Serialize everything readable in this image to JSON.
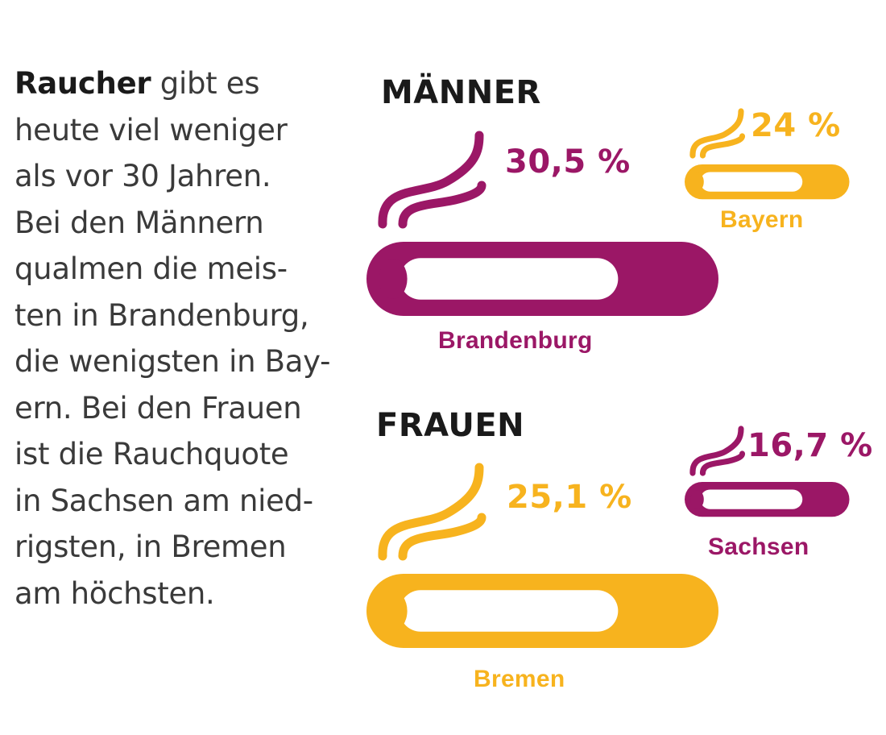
{
  "intro": {
    "lead": "Raucher",
    "first_rest": " gibt es",
    "lines": [
      "heute viel weniger",
      "als vor 30 Jahren.",
      "Bei den Männern",
      "qualmen die meis-",
      "ten in Brandenburg,",
      "die wenigsten in Bay-",
      "ern. Bei den Frauen",
      "ist die Rauchquote",
      "in Sachsen am nied-",
      "rigsten, in Bremen",
      "am höchsten."
    ]
  },
  "colors": {
    "purple": "#9b1766",
    "yellow": "#f7b31e",
    "text_dark": "#1a1a1a"
  },
  "chart_data": [
    {
      "type": "bar",
      "title": "MÄNNER",
      "categories": [
        "Brandenburg",
        "Bayern"
      ],
      "values": [
        30.5,
        24
      ],
      "value_labels": [
        "30,5 %",
        "24 %"
      ],
      "colors": [
        "#9b1766",
        "#f7b31e"
      ],
      "unit": "%"
    },
    {
      "type": "bar",
      "title": "FRAUEN",
      "categories": [
        "Bremen",
        "Sachsen"
      ],
      "values": [
        25.1,
        16.7
      ],
      "value_labels": [
        "25,1 %",
        "16,7 %"
      ],
      "colors": [
        "#f7b31e",
        "#9b1766"
      ],
      "unit": "%"
    }
  ]
}
